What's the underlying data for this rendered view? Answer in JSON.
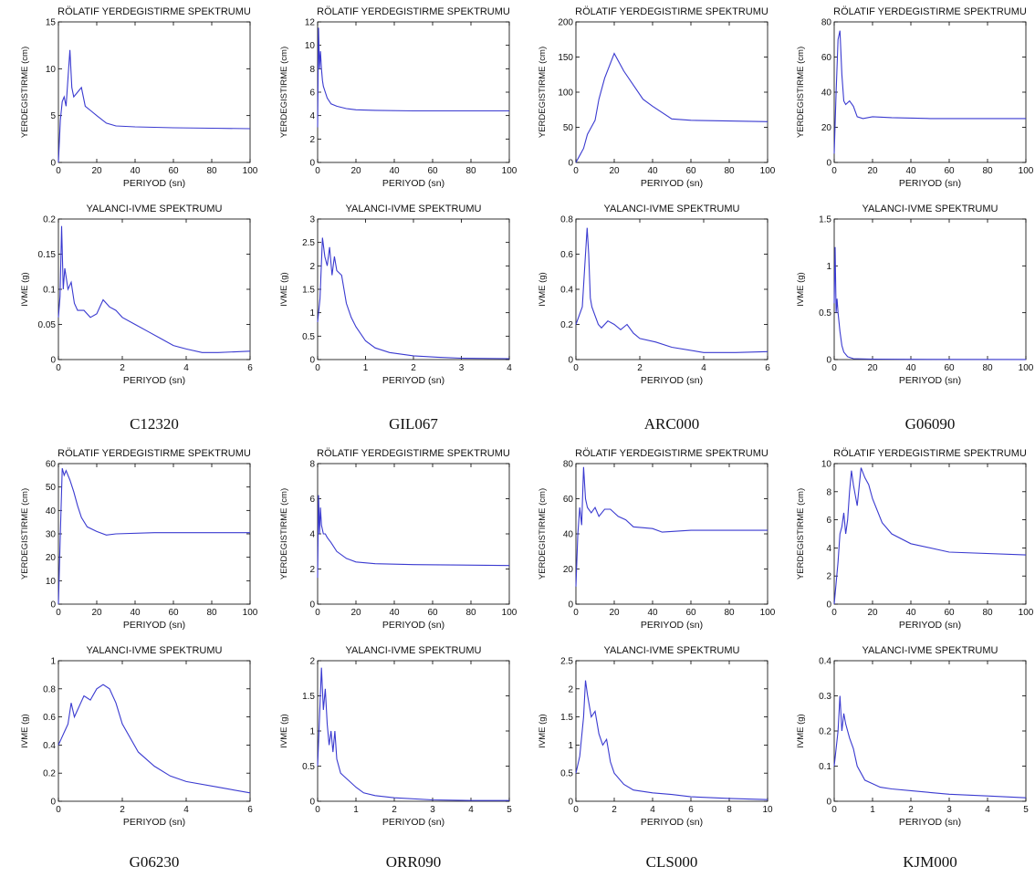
{
  "labels": {
    "disp_title": "RÖLATIF YERDEGISTIRME SPEKTRUMU",
    "acc_title": "YALANCI-IVME SPEKTRUMU",
    "xlabel": "PERIYOD (sn)",
    "disp_ylabel": "YERDEGISTIRME (cm)",
    "acc_ylabel": "IVME (g)"
  },
  "line_color": "#3a3ad0",
  "stations": [
    {
      "name": "C12320"
    },
    {
      "name": "GIL067"
    },
    {
      "name": "ARC000"
    },
    {
      "name": "G06090"
    },
    {
      "name": "G06230"
    },
    {
      "name": "ORR090"
    },
    {
      "name": "CLS000"
    },
    {
      "name": "KJM000"
    }
  ],
  "chart_data": [
    {
      "type": "line",
      "station": "C12320",
      "title": "RÖLATIF YERDEGISTIRME SPEKTRUMU",
      "xlabel": "PERIYOD (sn)",
      "ylabel": "YERDEGISTIRME (cm)",
      "xlim": [
        0,
        100
      ],
      "ylim": [
        0,
        15
      ],
      "xticks": [
        0,
        20,
        40,
        60,
        80,
        100
      ],
      "yticks": [
        0,
        5,
        10,
        15
      ],
      "x": [
        0,
        1,
        2,
        3,
        4,
        5,
        6,
        7,
        8,
        10,
        12,
        14,
        17,
        20,
        25,
        30,
        40,
        60,
        80,
        100
      ],
      "y": [
        0,
        4.5,
        6.5,
        7,
        6,
        9,
        12,
        8,
        7,
        7.5,
        8,
        6,
        5.5,
        5,
        4.2,
        3.9,
        3.8,
        3.7,
        3.65,
        3.6
      ]
    },
    {
      "type": "line",
      "station": "C12320",
      "title": "YALANCI-IVME SPEKTRUMU",
      "xlabel": "PERIYOD (sn)",
      "ylabel": "IVME (g)",
      "xlim": [
        0,
        6
      ],
      "ylim": [
        0,
        0.2
      ],
      "xticks": [
        0,
        2,
        4,
        6
      ],
      "yticks": [
        0,
        0.05,
        0.1,
        0.15,
        0.2
      ],
      "x": [
        0,
        0.05,
        0.1,
        0.15,
        0.2,
        0.3,
        0.4,
        0.5,
        0.6,
        0.8,
        1,
        1.2,
        1.4,
        1.6,
        1.8,
        2,
        2.4,
        2.8,
        3.2,
        3.6,
        4,
        4.5,
        5,
        6
      ],
      "y": [
        0.06,
        0.09,
        0.19,
        0.1,
        0.13,
        0.1,
        0.11,
        0.08,
        0.07,
        0.07,
        0.06,
        0.065,
        0.085,
        0.075,
        0.07,
        0.06,
        0.05,
        0.04,
        0.03,
        0.02,
        0.015,
        0.01,
        0.01,
        0.012
      ]
    },
    {
      "type": "line",
      "station": "GIL067",
      "title": "RÖLATIF YERDEGISTIRME SPEKTRUMU",
      "xlabel": "PERIYOD (sn)",
      "ylabel": "YERDEGISTIRME (cm)",
      "xlim": [
        0,
        100
      ],
      "ylim": [
        0,
        12
      ],
      "xticks": [
        0,
        20,
        40,
        60,
        80,
        100
      ],
      "yticks": [
        0,
        2,
        4,
        6,
        8,
        10,
        12
      ],
      "x": [
        0,
        0.5,
        1,
        1.5,
        2,
        2.5,
        3,
        4,
        5,
        7,
        10,
        15,
        20,
        30,
        50,
        100
      ],
      "y": [
        3,
        11.5,
        8,
        9.5,
        8,
        7,
        6.5,
        6,
        5.5,
        5,
        4.8,
        4.6,
        4.5,
        4.45,
        4.4,
        4.4
      ]
    },
    {
      "type": "line",
      "station": "GIL067",
      "title": "YALANCI-IVME SPEKTRUMU",
      "xlabel": "PERIYOD (sn)",
      "ylabel": "IVME (g)",
      "xlim": [
        0,
        4
      ],
      "ylim": [
        0,
        3
      ],
      "xticks": [
        0,
        1,
        2,
        3,
        4
      ],
      "yticks": [
        0,
        0.5,
        1,
        1.5,
        2,
        2.5,
        3
      ],
      "x": [
        0,
        0.05,
        0.1,
        0.15,
        0.2,
        0.25,
        0.3,
        0.35,
        0.4,
        0.5,
        0.6,
        0.7,
        0.8,
        1,
        1.2,
        1.5,
        2,
        2.5,
        3,
        4
      ],
      "y": [
        0.8,
        1.3,
        2.6,
        2.2,
        2.0,
        2.4,
        1.8,
        2.2,
        1.9,
        1.8,
        1.2,
        0.9,
        0.7,
        0.4,
        0.25,
        0.15,
        0.08,
        0.05,
        0.03,
        0.02
      ]
    },
    {
      "type": "line",
      "station": "ARC000",
      "title": "RÖLATIF YERDEGISTIRME SPEKTRUMU",
      "xlabel": "PERIYOD (sn)",
      "ylabel": "YERDEGISTIRME (cm)",
      "xlim": [
        0,
        100
      ],
      "ylim": [
        0,
        200
      ],
      "xticks": [
        0,
        20,
        40,
        60,
        80,
        100
      ],
      "yticks": [
        0,
        50,
        100,
        150,
        200
      ],
      "x": [
        0,
        2,
        4,
        6,
        8,
        10,
        12,
        15,
        20,
        25,
        30,
        35,
        40,
        50,
        60,
        80,
        100
      ],
      "y": [
        0,
        10,
        20,
        40,
        50,
        60,
        90,
        120,
        155,
        130,
        110,
        90,
        80,
        62,
        60,
        59,
        58
      ]
    },
    {
      "type": "line",
      "station": "ARC000",
      "title": "YALANCI-IVME SPEKTRUMU",
      "xlabel": "PERIYOD (sn)",
      "ylabel": "IVME (g)",
      "xlim": [
        0,
        6
      ],
      "ylim": [
        0,
        0.8
      ],
      "xticks": [
        0,
        2,
        4,
        6
      ],
      "yticks": [
        0,
        0.2,
        0.4,
        0.6,
        0.8
      ],
      "x": [
        0,
        0.1,
        0.2,
        0.3,
        0.35,
        0.4,
        0.45,
        0.5,
        0.6,
        0.7,
        0.8,
        1,
        1.2,
        1.4,
        1.6,
        1.8,
        2,
        2.5,
        3,
        4,
        5,
        6
      ],
      "y": [
        0.2,
        0.25,
        0.3,
        0.6,
        0.75,
        0.6,
        0.35,
        0.3,
        0.25,
        0.2,
        0.18,
        0.22,
        0.2,
        0.17,
        0.2,
        0.15,
        0.12,
        0.1,
        0.07,
        0.04,
        0.04,
        0.045
      ]
    },
    {
      "type": "line",
      "station": "G06090",
      "title": "RÖLATIF YERDEGISTIRME SPEKTRUMU",
      "xlabel": "PERIYOD (sn)",
      "ylabel": "YERDEGISTIRME (cm)",
      "xlim": [
        0,
        100
      ],
      "ylim": [
        0,
        80
      ],
      "xticks": [
        0,
        20,
        40,
        60,
        80,
        100
      ],
      "yticks": [
        0,
        20,
        40,
        60,
        80
      ],
      "x": [
        0,
        1,
        2,
        3,
        4,
        5,
        6,
        8,
        10,
        12,
        15,
        20,
        30,
        50,
        100
      ],
      "y": [
        5,
        40,
        70,
        75,
        50,
        35,
        33,
        35,
        32,
        26,
        25,
        26,
        25.5,
        25,
        25
      ]
    },
    {
      "type": "line",
      "station": "G06090",
      "title": "YALANCI-IVME SPEKTRUMU",
      "xlabel": "PERIYOD (sn)",
      "ylabel": "IVME (g)",
      "xlim": [
        0,
        100
      ],
      "ylim": [
        0,
        1.5
      ],
      "xticks": [
        0,
        20,
        40,
        60,
        80,
        100
      ],
      "yticks": [
        0,
        0.5,
        1,
        1.5
      ],
      "x": [
        0,
        0.5,
        1,
        1.5,
        2,
        3,
        4,
        5,
        7,
        10,
        20,
        50,
        100
      ],
      "y": [
        0.6,
        1.2,
        0.5,
        0.65,
        0.5,
        0.3,
        0.15,
        0.08,
        0.03,
        0.01,
        0.005,
        0.002,
        0.001
      ]
    },
    {
      "type": "line",
      "station": "G06230",
      "title": "RÖLATIF YERDEGISTIRME SPEKTRUMU",
      "xlabel": "PERIYOD (sn)",
      "ylabel": "YERDEGISTIRME (cm)",
      "xlim": [
        0,
        100
      ],
      "ylim": [
        0,
        60
      ],
      "xticks": [
        0,
        20,
        40,
        60,
        80,
        100
      ],
      "yticks": [
        0,
        10,
        20,
        30,
        40,
        50,
        60
      ],
      "x": [
        0,
        1,
        2,
        3,
        4,
        6,
        8,
        10,
        12,
        15,
        20,
        25,
        30,
        50,
        100
      ],
      "y": [
        0,
        30,
        58,
        55,
        57,
        53,
        48,
        42,
        37,
        33,
        31,
        29.5,
        30,
        30.5,
        30.5
      ]
    },
    {
      "type": "line",
      "station": "G06230",
      "title": "YALANCI-IVME SPEKTRUMU",
      "xlabel": "PERIYOD (sn)",
      "ylabel": "IVME (g)",
      "xlim": [
        0,
        6
      ],
      "ylim": [
        0,
        1
      ],
      "xticks": [
        0,
        2,
        4,
        6
      ],
      "yticks": [
        0,
        0.2,
        0.4,
        0.6,
        0.8,
        1
      ],
      "x": [
        0,
        0.1,
        0.2,
        0.3,
        0.4,
        0.5,
        0.6,
        0.7,
        0.8,
        1,
        1.2,
        1.4,
        1.6,
        1.8,
        2,
        2.5,
        3,
        3.5,
        4,
        5,
        6
      ],
      "y": [
        0.4,
        0.45,
        0.5,
        0.55,
        0.7,
        0.6,
        0.65,
        0.7,
        0.75,
        0.72,
        0.8,
        0.83,
        0.8,
        0.7,
        0.55,
        0.35,
        0.25,
        0.18,
        0.14,
        0.1,
        0.06
      ]
    },
    {
      "type": "line",
      "station": "ORR090",
      "title": "RÖLATIF YERDEGISTIRME SPEKTRUMU",
      "xlabel": "PERIYOD (sn)",
      "ylabel": "YERDEGISTIRME (cm)",
      "xlim": [
        0,
        100
      ],
      "ylim": [
        0,
        8
      ],
      "xticks": [
        0,
        20,
        40,
        60,
        80,
        100
      ],
      "yticks": [
        0,
        2,
        4,
        6,
        8
      ],
      "x": [
        0,
        0.5,
        1,
        1.5,
        2,
        3,
        4,
        5,
        7,
        10,
        15,
        20,
        30,
        50,
        100
      ],
      "y": [
        1.5,
        6.2,
        4,
        5.5,
        4.5,
        4,
        4,
        3.8,
        3.5,
        3,
        2.6,
        2.4,
        2.3,
        2.25,
        2.2
      ]
    },
    {
      "type": "line",
      "station": "ORR090",
      "title": "YALANCI-IVME SPEKTRUMU",
      "xlabel": "PERIYOD (sn)",
      "ylabel": "IVME (g)",
      "xlim": [
        0,
        5
      ],
      "ylim": [
        0,
        2
      ],
      "xticks": [
        0,
        1,
        2,
        3,
        4,
        5
      ],
      "yticks": [
        0,
        0.5,
        1,
        1.5,
        2
      ],
      "x": [
        0,
        0.05,
        0.1,
        0.15,
        0.2,
        0.25,
        0.3,
        0.35,
        0.4,
        0.45,
        0.5,
        0.6,
        0.7,
        0.8,
        1,
        1.2,
        1.5,
        2,
        3,
        4,
        5
      ],
      "y": [
        0.5,
        1.2,
        1.9,
        1.3,
        1.6,
        1.1,
        0.8,
        1.0,
        0.7,
        1.0,
        0.6,
        0.4,
        0.35,
        0.3,
        0.2,
        0.12,
        0.08,
        0.05,
        0.02,
        0.01,
        0.01
      ]
    },
    {
      "type": "line",
      "station": "CLS000",
      "title": "RÖLATIF YERDEGISTIRME SPEKTRUMU",
      "xlabel": "PERIYOD (sn)",
      "ylabel": "YERDEGISTIRME (cm)",
      "xlim": [
        0,
        100
      ],
      "ylim": [
        0,
        80
      ],
      "xticks": [
        0,
        20,
        40,
        60,
        80,
        100
      ],
      "yticks": [
        0,
        20,
        40,
        60,
        80
      ],
      "x": [
        0,
        1,
        2,
        3,
        4,
        5,
        6,
        8,
        10,
        12,
        15,
        18,
        22,
        26,
        30,
        40,
        45,
        60,
        100
      ],
      "y": [
        10,
        40,
        55,
        45,
        78,
        60,
        55,
        52,
        55,
        50,
        54,
        54,
        50,
        48,
        44,
        43,
        41,
        42,
        42
      ]
    },
    {
      "type": "line",
      "station": "CLS000",
      "title": "YALANCI-IVME SPEKTRUMU",
      "xlabel": "PERIYOD (sn)",
      "ylabel": "IVME (g)",
      "xlim": [
        0,
        10
      ],
      "ylim": [
        0,
        2.5
      ],
      "xticks": [
        0,
        2,
        4,
        6,
        8,
        10
      ],
      "yticks": [
        0,
        0.5,
        1,
        1.5,
        2,
        2.5
      ],
      "x": [
        0,
        0.2,
        0.4,
        0.5,
        0.6,
        0.8,
        1,
        1.2,
        1.4,
        1.6,
        1.8,
        2,
        2.5,
        3,
        4,
        5,
        6,
        8,
        10
      ],
      "y": [
        0.5,
        0.8,
        1.5,
        2.15,
        1.9,
        1.5,
        1.6,
        1.2,
        1.0,
        1.1,
        0.7,
        0.5,
        0.3,
        0.2,
        0.15,
        0.12,
        0.08,
        0.05,
        0.03
      ]
    },
    {
      "type": "line",
      "station": "KJM000",
      "title": "RÖLATIF YERDEGISTIRME SPEKTRUMU",
      "xlabel": "PERIYOD (sn)",
      "ylabel": "YERDEGISTIRME (cm)",
      "xlim": [
        0,
        100
      ],
      "ylim": [
        0,
        10
      ],
      "xticks": [
        0,
        20,
        40,
        60,
        80,
        100
      ],
      "yticks": [
        0,
        2,
        4,
        6,
        8,
        10
      ],
      "x": [
        0,
        1,
        2,
        3,
        4,
        5,
        6,
        7,
        8,
        9,
        10,
        12,
        14,
        16,
        18,
        20,
        25,
        30,
        40,
        60,
        100
      ],
      "y": [
        0,
        1.5,
        3,
        5,
        5.5,
        6.5,
        5,
        6,
        8,
        9.5,
        8.5,
        7,
        9.7,
        9,
        8.5,
        7.5,
        5.8,
        5,
        4.3,
        3.7,
        3.5
      ]
    },
    {
      "type": "line",
      "station": "KJM000",
      "title": "YALANCI-IVME SPEKTRUMU",
      "xlabel": "PERIYOD (sn)",
      "ylabel": "IVME (g)",
      "xlim": [
        0,
        5
      ],
      "ylim": [
        0,
        0.4
      ],
      "xticks": [
        0,
        1,
        2,
        3,
        4,
        5
      ],
      "yticks": [
        0,
        0.1,
        0.2,
        0.3,
        0.4
      ],
      "x": [
        0,
        0.1,
        0.15,
        0.2,
        0.25,
        0.3,
        0.35,
        0.4,
        0.5,
        0.6,
        0.7,
        0.8,
        1,
        1.2,
        1.5,
        2,
        2.5,
        3,
        4,
        5
      ],
      "y": [
        0.1,
        0.2,
        0.3,
        0.2,
        0.25,
        0.22,
        0.2,
        0.18,
        0.15,
        0.1,
        0.08,
        0.06,
        0.05,
        0.04,
        0.035,
        0.03,
        0.025,
        0.02,
        0.015,
        0.01
      ]
    }
  ]
}
